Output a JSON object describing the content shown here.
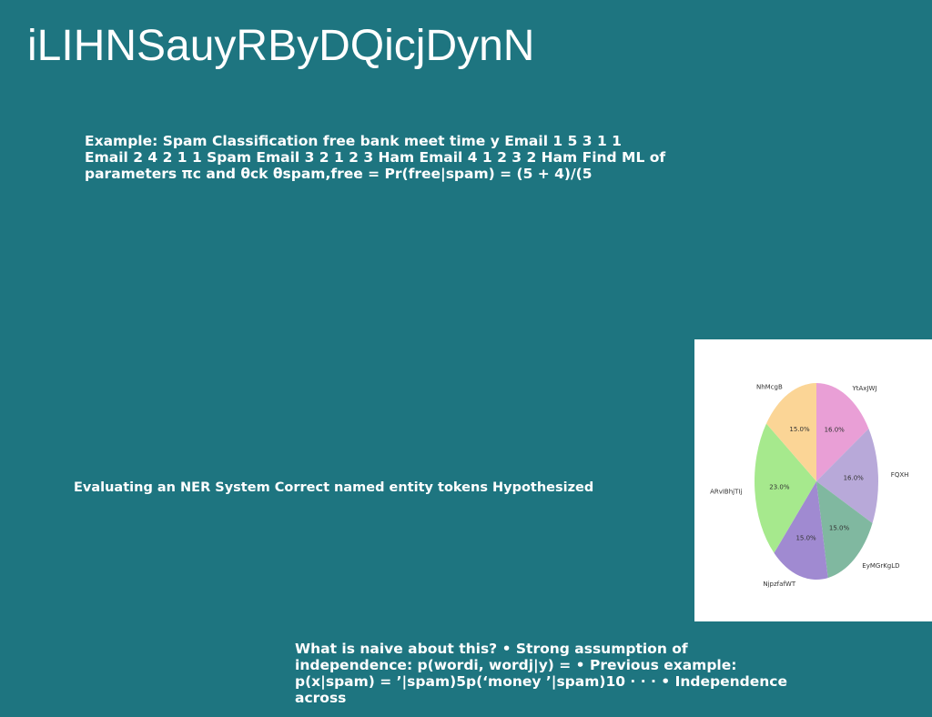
{
  "slide": {
    "title": "iLIHNSauyRByDQicjDynN",
    "background_color": "#1e7580",
    "spam_example_text": "Example: Spam Classification free bank meet time y Email 1 5 3 1 1 Email 2 4 2 1 1 Spam Email 3 2 1 2 3 Ham Email 4 1 2 3 2 Ham Find ML of parameters πc and θck θspam,free = Pr(free|spam) = (5 + 4)/(5",
    "ner_text": "Evaluating an NER System Correct named entity tokens Hypothesized",
    "naive_text": "What is naive about this? • Strong assumption of independence: p(wordi, wordj|y) = • Previous example: p(x|spam) = ’|spam)5p(‘money ’|spam)10 · · · • Independence across"
  },
  "chart_data": {
    "type": "pie",
    "title": "",
    "slices": [
      {
        "label": "YtAxJWJ",
        "value": 16.0,
        "pct_label": "16.0%",
        "color": "#e99fd6"
      },
      {
        "label": "FQXH",
        "value": 16.0,
        "pct_label": "16.0%",
        "color": "#b8a9d9"
      },
      {
        "label": "EyMGrKgLD",
        "value": 15.0,
        "pct_label": "15.0%",
        "color": "#80b8a0"
      },
      {
        "label": "NjpzfafWT",
        "value": 15.0,
        "pct_label": "15.0%",
        "color": "#a08ad1"
      },
      {
        "label": "ARvIBhjTIj",
        "value": 23.0,
        "pct_label": "23.0%",
        "color": "#a6e98d"
      },
      {
        "label": "NhMcgB",
        "value": 15.0,
        "pct_label": "15.0%",
        "color": "#fbd596"
      }
    ],
    "start_angle_deg": 90,
    "direction": "clockwise"
  }
}
